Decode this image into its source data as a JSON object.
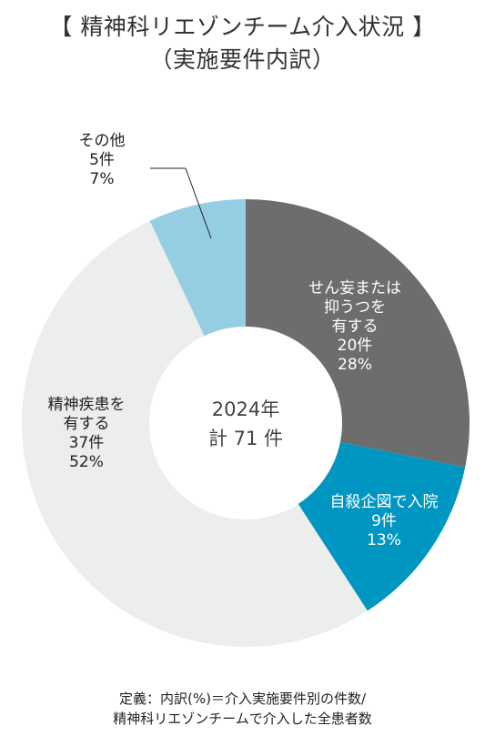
{
  "title_line1": "【 精神科リエゾンチーム介入状況 】",
  "title_line2": "（実施要件内訳）",
  "center_label": {
    "line1": "2024年",
    "line2": "計 71 件"
  },
  "footer_line1": "定義：内訳(%)＝介入実施要件別の件数/",
  "footer_line2": "精神科リエゾンチームで介入した全患者数",
  "chart_data": {
    "type": "pie",
    "total": 71,
    "unit": "件",
    "series": [
      {
        "label_lines": [
          "せん妄または",
          "抑うつを",
          "有する"
        ],
        "value": 20,
        "count_label": "20件",
        "percent": 28,
        "percent_label": "28%",
        "color": "#6d6d6d",
        "text_color": "#ffffff"
      },
      {
        "label_lines": [
          "自殺企図で入院"
        ],
        "value": 9,
        "count_label": "9件",
        "percent": 13,
        "percent_label": "13%",
        "color": "#0096c2",
        "text_color": "#ffffff"
      },
      {
        "label_lines": [
          "精神疾患を",
          "有する"
        ],
        "value": 37,
        "count_label": "37件",
        "percent": 52,
        "percent_label": "52%",
        "color": "#eceeee",
        "text_color": "#222222"
      },
      {
        "label_lines": [
          "その他"
        ],
        "value": 5,
        "count_label": "5件",
        "percent": 7,
        "percent_label": "7%",
        "color": "#95cde3",
        "text_color": "#222222"
      }
    ]
  }
}
